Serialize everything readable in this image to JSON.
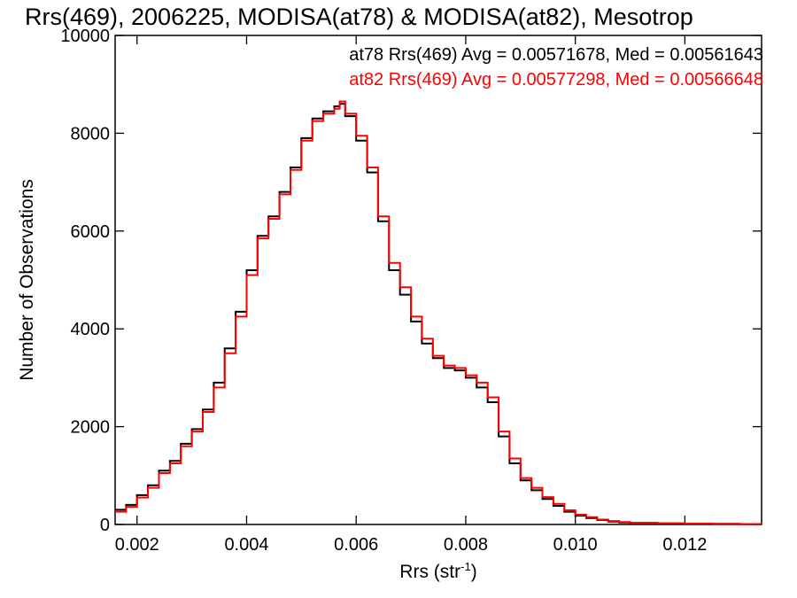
{
  "chart_data": {
    "type": "line",
    "title": "Rrs(469), 2006225, MODISA(at78) & MODISA(at82), Mesotrop",
    "xlabel": "Rrs (str",
    "xlabel_sup": "-1",
    "xlabel_close": ")",
    "ylabel": "Number of Observations",
    "xlim": [
      0.0016,
      0.0134
    ],
    "ylim": [
      0,
      10000
    ],
    "x_ticks": [
      0.002,
      0.004,
      0.006,
      0.008,
      0.01,
      0.012
    ],
    "x_tick_labels": [
      "0.002",
      "0.004",
      "0.006",
      "0.008",
      "0.010",
      "0.012"
    ],
    "y_ticks": [
      0,
      2000,
      4000,
      6000,
      8000,
      10000
    ],
    "y_tick_labels": [
      "0",
      "2000",
      "4000",
      "6000",
      "8000",
      "10000"
    ],
    "grid": false,
    "legend_placement": "top-right",
    "series": [
      {
        "name": "at78",
        "color": "#000000",
        "annotation": "at78 Rrs(469) Avg = 0.00571678, Med = 0.00561643",
        "x": [
          0.0016,
          0.0018,
          0.002,
          0.0022,
          0.0024,
          0.0026,
          0.0028,
          0.003,
          0.0032,
          0.0034,
          0.0036,
          0.0038,
          0.004,
          0.0042,
          0.0044,
          0.0046,
          0.0048,
          0.005,
          0.0052,
          0.0054,
          0.0056,
          0.0057,
          0.0058,
          0.006,
          0.0062,
          0.0064,
          0.0066,
          0.0068,
          0.007,
          0.0072,
          0.0074,
          0.0076,
          0.0078,
          0.008,
          0.0082,
          0.0084,
          0.0086,
          0.0088,
          0.009,
          0.0092,
          0.0094,
          0.0096,
          0.0098,
          0.01,
          0.0102,
          0.0104,
          0.0106,
          0.0108,
          0.011,
          0.0115,
          0.012,
          0.0125,
          0.013,
          0.0134
        ],
        "y": [
          300,
          400,
          600,
          800,
          1100,
          1300,
          1650,
          1950,
          2350,
          2900,
          3600,
          4350,
          5200,
          5900,
          6300,
          6800,
          7300,
          7900,
          8300,
          8450,
          8550,
          8600,
          8350,
          7850,
          7200,
          6200,
          5200,
          4700,
          4150,
          3700,
          3400,
          3200,
          3150,
          3000,
          2800,
          2500,
          1800,
          1250,
          900,
          700,
          520,
          380,
          260,
          180,
          130,
          90,
          60,
          40,
          30,
          20,
          15,
          10,
          8,
          5
        ]
      },
      {
        "name": "at82",
        "color": "#ff0000",
        "annotation": "at82 Rrs(469) Avg = 0.00577298, Med = 0.00566648",
        "x": [
          0.0016,
          0.0018,
          0.002,
          0.0022,
          0.0024,
          0.0026,
          0.0028,
          0.003,
          0.0032,
          0.0034,
          0.0036,
          0.0038,
          0.004,
          0.0042,
          0.0044,
          0.0046,
          0.0048,
          0.005,
          0.0052,
          0.0054,
          0.0056,
          0.0057,
          0.0058,
          0.006,
          0.0062,
          0.0064,
          0.0066,
          0.0068,
          0.007,
          0.0072,
          0.0074,
          0.0076,
          0.0078,
          0.008,
          0.0082,
          0.0084,
          0.0086,
          0.0088,
          0.009,
          0.0092,
          0.0094,
          0.0096,
          0.0098,
          0.01,
          0.0102,
          0.0104,
          0.0106,
          0.0108,
          0.011,
          0.0115,
          0.012,
          0.0125,
          0.013,
          0.0134
        ],
        "y": [
          260,
          360,
          550,
          750,
          1050,
          1250,
          1600,
          1900,
          2300,
          2800,
          3500,
          4250,
          5100,
          5850,
          6250,
          6750,
          7250,
          7850,
          8250,
          8400,
          8500,
          8650,
          8400,
          7950,
          7300,
          6300,
          5350,
          4850,
          4250,
          3800,
          3450,
          3250,
          3200,
          3050,
          2900,
          2600,
          1900,
          1350,
          950,
          750,
          560,
          420,
          290,
          200,
          150,
          100,
          70,
          50,
          35,
          25,
          18,
          12,
          9,
          6
        ]
      }
    ]
  }
}
